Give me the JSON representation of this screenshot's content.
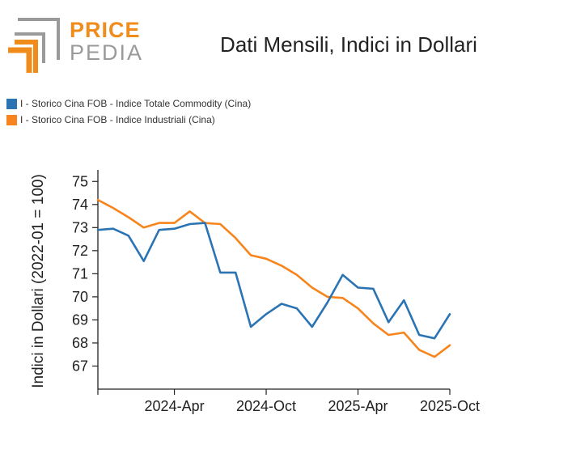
{
  "header": {
    "logo_top": "PRICE",
    "logo_bottom": "PEDIA"
  },
  "colors": {
    "series_blue": "#2b74b4",
    "series_orange": "#f7841c",
    "logo_orange": "#f08c1c",
    "logo_grey": "#9a9a9a"
  },
  "chart_data": {
    "type": "line",
    "title": "Dati Mensili, Indici in Dollari",
    "xlabel": "",
    "ylabel": "Indici in Dollari (2022-01 = 100)",
    "ylim": [
      66,
      75.5
    ],
    "yticks": [
      "67",
      "68",
      "69",
      "70",
      "71",
      "72",
      "73",
      "74",
      "75"
    ],
    "x_tick_labels": [
      {
        "index": 5,
        "label": "2024-Apr"
      },
      {
        "index": 11,
        "label": "2024-Oct"
      },
      {
        "index": 17,
        "label": "2025-Apr"
      },
      {
        "index": 23,
        "label": "2025-Oct"
      }
    ],
    "x_count": 24,
    "legend_position": "top-left",
    "grid": false,
    "series": [
      {
        "name": "I - Storico Cina FOB - Indice Totale Commodity (Cina)",
        "color": "#2b74b4",
        "values": [
          72.9,
          72.95,
          72.65,
          71.55,
          72.9,
          72.95,
          73.15,
          73.2,
          71.05,
          71.05,
          68.7,
          69.25,
          69.7,
          69.5,
          68.7,
          69.75,
          70.95,
          70.4,
          70.35,
          68.9,
          69.85,
          68.35,
          68.2,
          69.25
        ]
      },
      {
        "name": "I - Storico Cina FOB - Indice Industriali (Cina)",
        "color": "#f7841c",
        "values": [
          74.2,
          73.85,
          73.45,
          73.0,
          73.2,
          73.2,
          73.7,
          73.2,
          73.15,
          72.55,
          71.8,
          71.65,
          71.35,
          70.95,
          70.4,
          70.0,
          69.95,
          69.5,
          68.85,
          68.35,
          68.45,
          67.7,
          67.4,
          67.9
        ]
      }
    ]
  }
}
